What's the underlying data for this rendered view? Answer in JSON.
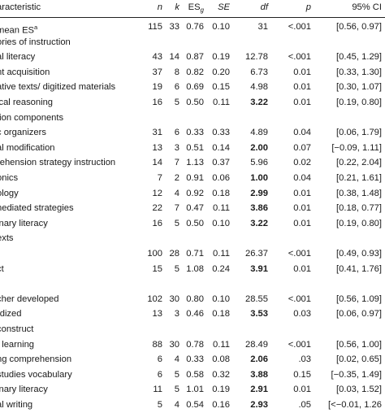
{
  "header": {
    "characteristic": "aracteristic",
    "n": "n",
    "k": "k",
    "es": "ES",
    "es_sub": "g",
    "se": "SE",
    "df": "df",
    "p": "p",
    "ci": "95% CI"
  },
  "rows": [
    {
      "label": "mean ES",
      "label_sup": "a",
      "n": "115",
      "k": "33",
      "es": "0.76",
      "se": "0.10",
      "df": "31",
      "p": "<.001",
      "ci": "[0.56, 0.97]"
    },
    {
      "label": "ories of instruction"
    },
    {
      "label": "al literacy",
      "n": "43",
      "k": "14",
      "es": "0.87",
      "se": "0.19",
      "df": "12.78",
      "p": "<.001",
      "ci": "[0.45, 1.29]"
    },
    {
      "label": "nt acquisition",
      "n": "37",
      "k": "8",
      "es": "0.82",
      "se": "0.20",
      "df": "6.73",
      "p": "0.01",
      "ci": "[0.33, 1.30]"
    },
    {
      "label": "ative texts/ digitized materials",
      "n": "19",
      "k": "6",
      "es": "0.69",
      "se": "0.15",
      "df": "4.98",
      "p": "0.01",
      "ci": "[0.30, 1.07]"
    },
    {
      "label": "ical reasoning",
      "n": "16",
      "k": "5",
      "es": "0.50",
      "se": "0.11",
      "df": "3.22",
      "df_bold": true,
      "p": "0.01",
      "ci": "[0.19, 0.80]"
    },
    {
      "label": "tion components"
    },
    {
      "label": "c organizers",
      "n": "31",
      "k": "6",
      "es": "0.33",
      "se": "0.33",
      "df": "4.89",
      "p": "0.04",
      "ci": "[0.06, 1.79]"
    },
    {
      "label": "al modification",
      "n": "13",
      "k": "3",
      "es": "0.51",
      "se": "0.14",
      "df": "2.00",
      "df_bold": true,
      "p": "0.07",
      "ci": "[−0.09, 1.11]"
    },
    {
      "label": "rehension strategy instruction",
      "n": "14",
      "k": "7",
      "es": "1.13",
      "se": "0.37",
      "df": "5.96",
      "p": "0.02",
      "ci": "[0.22, 2.04]"
    },
    {
      "label": "onics",
      "n": "7",
      "k": "2",
      "es": "0.91",
      "se": "0.06",
      "df": "1.00",
      "df_bold": true,
      "p": "0.04",
      "ci": "[0.21, 1.61]"
    },
    {
      "label": "ology",
      "n": "12",
      "k": "4",
      "es": "0.92",
      "se": "0.18",
      "df": "2.99",
      "df_bold": true,
      "p": "0.01",
      "ci": "[0.38, 1.48]"
    },
    {
      "label": "nediated strategies",
      "n": "22",
      "k": "7",
      "es": "0.47",
      "se": "0.11",
      "df": "3.86",
      "df_bold": true,
      "p": "0.01",
      "ci": "[0.18, 0.77]"
    },
    {
      "label": "inary literacy",
      "n": "16",
      "k": "5",
      "es": "0.50",
      "se": "0.10",
      "df": "3.22",
      "df_bold": true,
      "p": "0.01",
      "ci": "[0.19, 0.80]"
    },
    {
      "label": "exts"
    },
    {
      "label": "",
      "n": "100",
      "k": "28",
      "es": "0.71",
      "se": "0.11",
      "df": "26.37",
      "p": "<.001",
      "ci": "[0.49, 0.93]"
    },
    {
      "label": "ct",
      "n": "15",
      "k": "5",
      "es": "1.08",
      "se": "0.24",
      "df": "3.91",
      "df_bold": true,
      "p": "0.01",
      "ci": "[0.41, 1.76]"
    },
    {
      "label": ""
    },
    {
      "label": "cher developed",
      "n": "102",
      "k": "30",
      "es": "0.80",
      "se": "0.10",
      "df": "28.55",
      "p": "<.001",
      "ci": "[0.56, 1.09]"
    },
    {
      "label": "rdized",
      "n": "13",
      "k": "3",
      "es": "0.46",
      "se": "0.18",
      "df": "3.53",
      "df_bold": true,
      "p": "0.03",
      "ci": "[0.06, 0.97]"
    },
    {
      "label": "construct"
    },
    {
      "label": "t learning",
      "n": "88",
      "k": "30",
      "es": "0.78",
      "se": "0.11",
      "df": "28.49",
      "p": "<.001",
      "ci": "[0.56, 1.00]"
    },
    {
      "label": "ng comprehension",
      "n": "6",
      "k": "4",
      "es": "0.33",
      "se": "0.08",
      "df": "2.06",
      "df_bold": true,
      "p": ".03",
      "ci": "[0.02, 0.65]"
    },
    {
      "label": "studies vocabulary",
      "n": "6",
      "k": "5",
      "es": "0.58",
      "se": "0.32",
      "df": "3.88",
      "df_bold": true,
      "p": "0.15",
      "ci": "[−0.35, 1.49]"
    },
    {
      "label": "inary literacy",
      "n": "11",
      "k": "5",
      "es": "1.01",
      "se": "0.19",
      "df": "2.91",
      "df_bold": true,
      "p": "0.01",
      "ci": "[0.03, 1.52]"
    },
    {
      "label": "al writing",
      "n": "5",
      "k": "4",
      "es": "0.54",
      "se": "0.16",
      "df": "2.93",
      "df_bold": true,
      "p": ".05",
      "ci": "[<−0.01, 1.26"
    }
  ]
}
